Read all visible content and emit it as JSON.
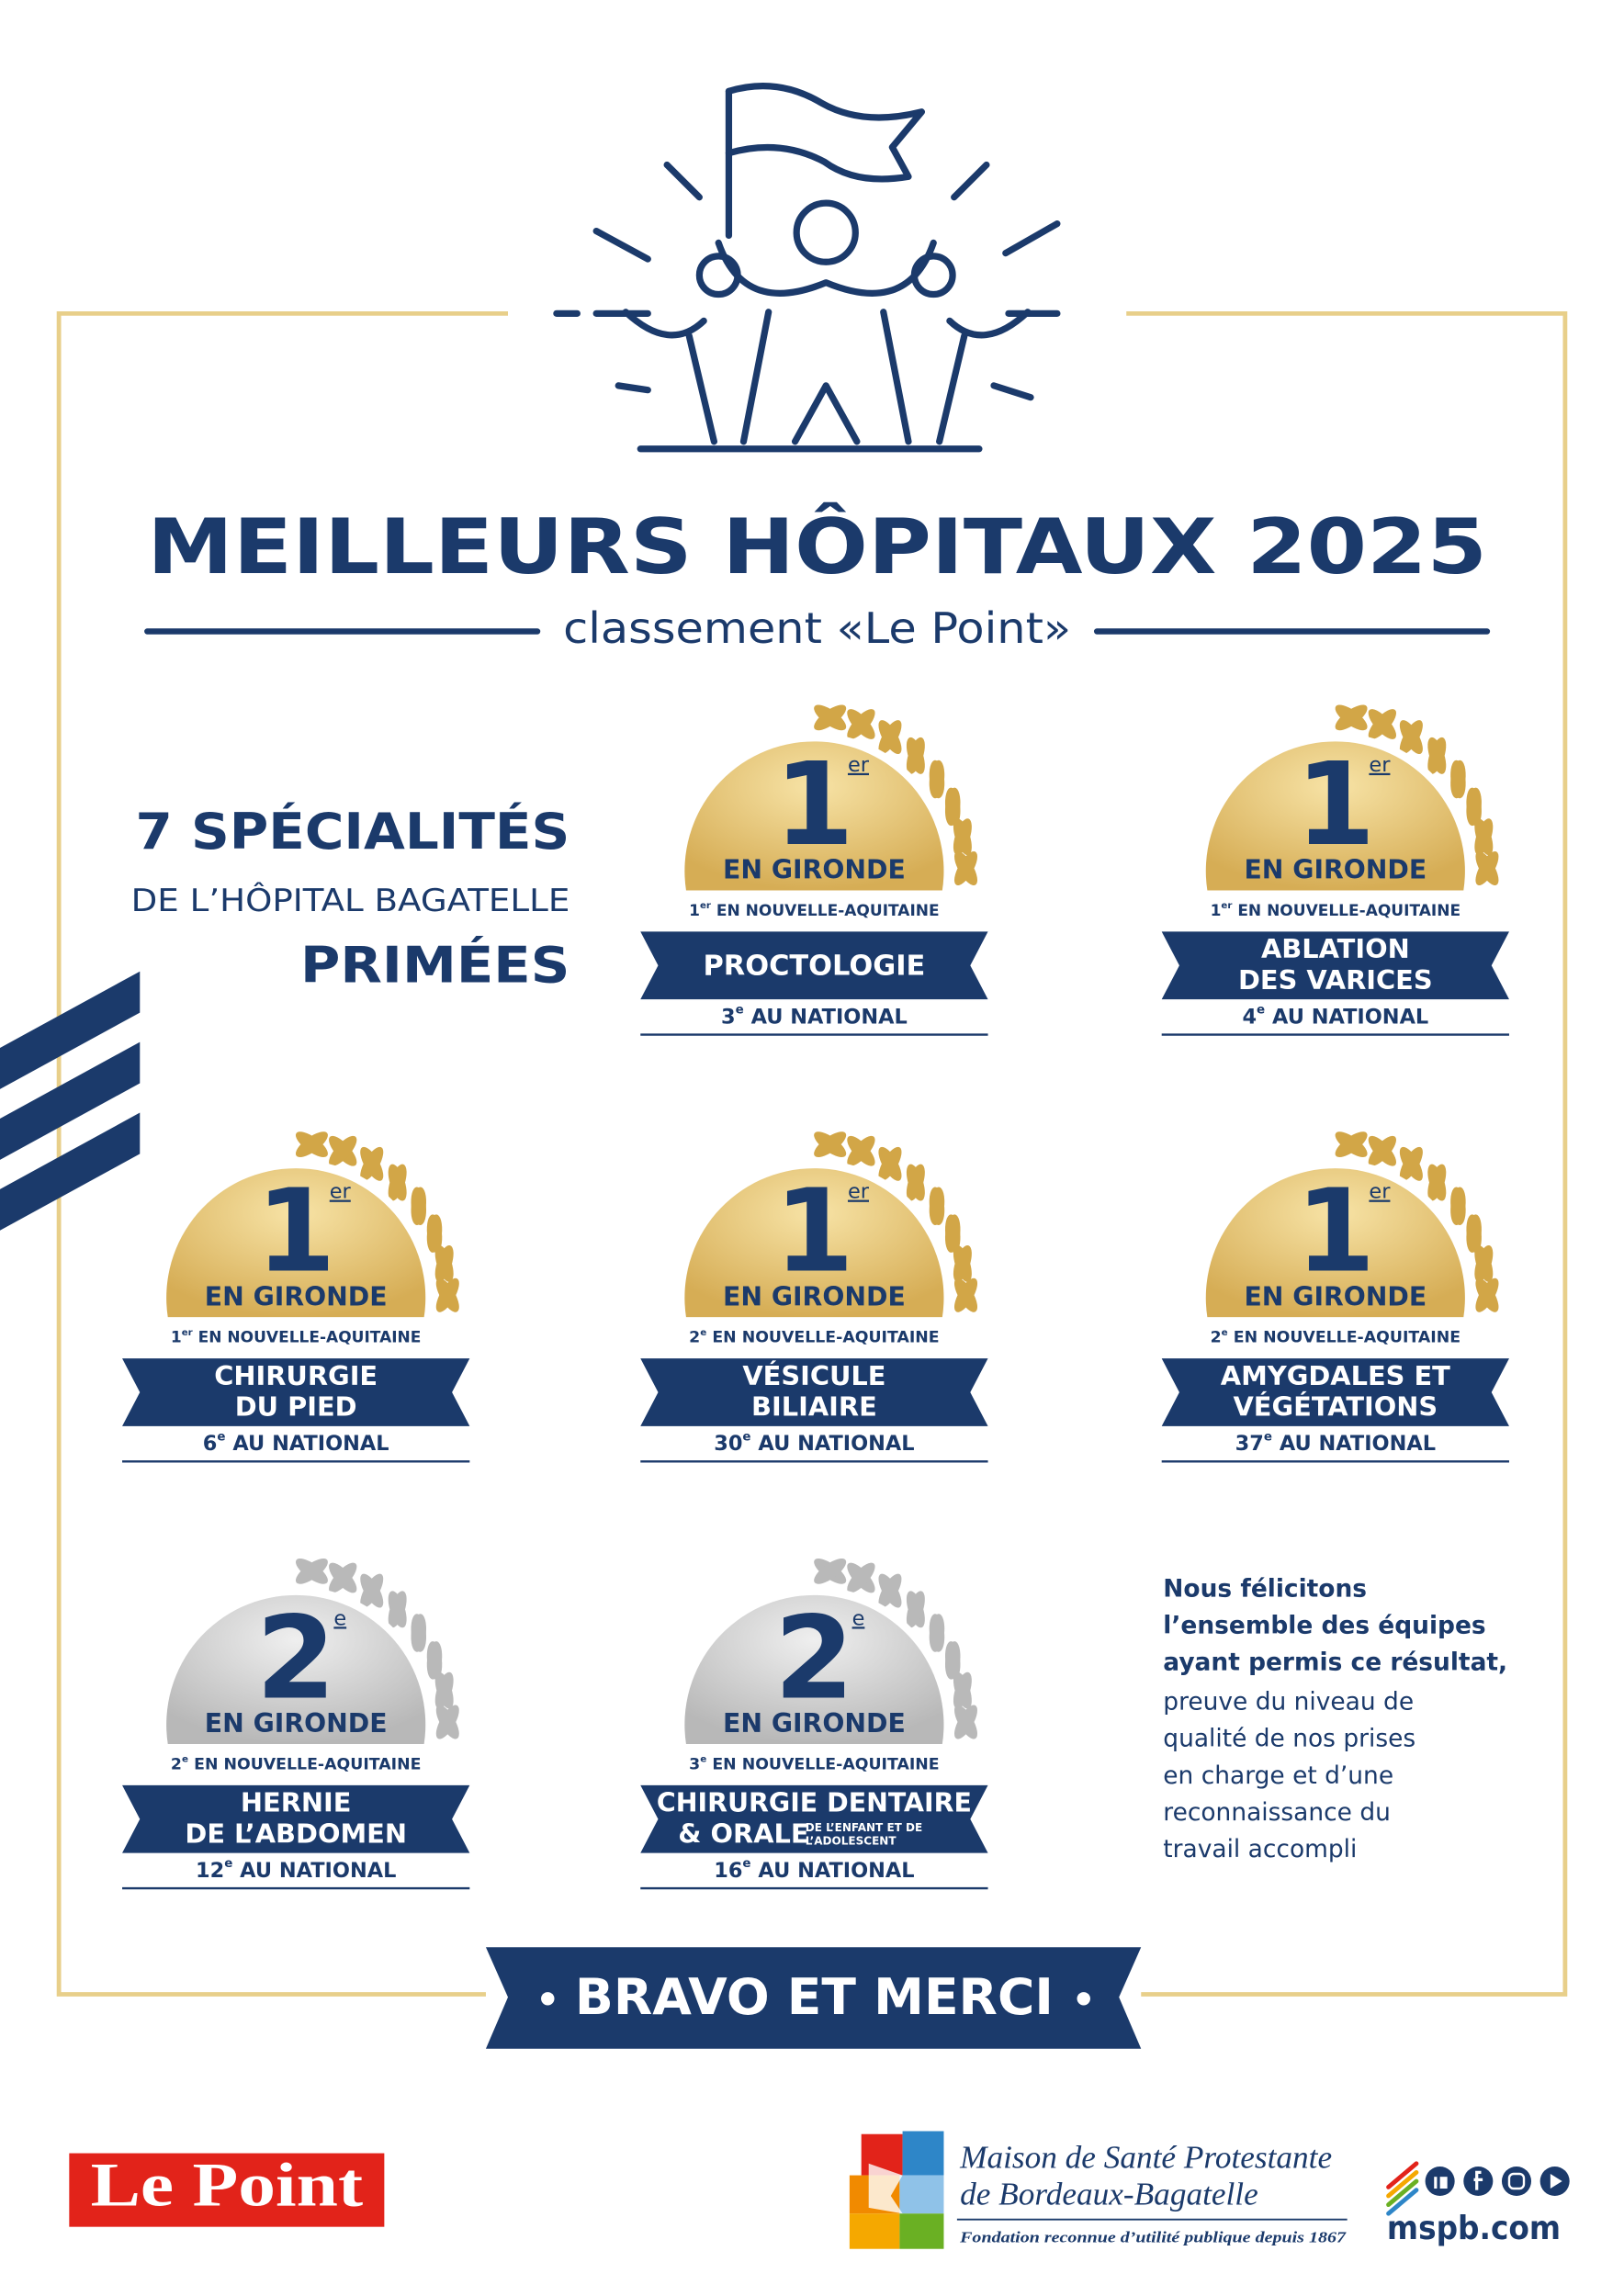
{
  "header": {
    "title": "MEILLEURS HÔPITAUX 2025",
    "subtitle": "classement «Le Point»"
  },
  "intro": {
    "count": "7 SPÉCIALITÉS",
    "hospital": "DE L’HÔPITAL BAGATELLE",
    "award": "PRIMÉES"
  },
  "badges": [
    {
      "medal": "gold",
      "rank": "1",
      "rank_suffix": "er",
      "area": "EN GIRONDE",
      "regional": {
        "rank": "1",
        "suffix": "er",
        "text": "EN NOUVELLE-AQUITAINE"
      },
      "specialty": [
        "PROCTOLOGIE"
      ],
      "national": {
        "rank": "3",
        "suffix": "e",
        "text": "AU NATIONAL"
      }
    },
    {
      "medal": "gold",
      "rank": "1",
      "rank_suffix": "er",
      "area": "EN GIRONDE",
      "regional": {
        "rank": "1",
        "suffix": "er",
        "text": "EN NOUVELLE-AQUITAINE"
      },
      "specialty": [
        "ABLATION",
        "DES VARICES"
      ],
      "national": {
        "rank": "4",
        "suffix": "e",
        "text": "AU NATIONAL"
      }
    },
    {
      "medal": "gold",
      "rank": "1",
      "rank_suffix": "er",
      "area": "EN GIRONDE",
      "regional": {
        "rank": "1",
        "suffix": "er",
        "text": "EN NOUVELLE-AQUITAINE"
      },
      "specialty": [
        "CHIRURGIE",
        "DU PIED"
      ],
      "national": {
        "rank": "6",
        "suffix": "e",
        "text": "AU NATIONAL"
      }
    },
    {
      "medal": "gold",
      "rank": "1",
      "rank_suffix": "er",
      "area": "EN GIRONDE",
      "regional": {
        "rank": "2",
        "suffix": "e",
        "text": "EN NOUVELLE-AQUITAINE"
      },
      "specialty": [
        "VÉSICULE",
        "BILIAIRE"
      ],
      "national": {
        "rank": "30",
        "suffix": "e",
        "text": "AU NATIONAL"
      }
    },
    {
      "medal": "gold",
      "rank": "1",
      "rank_suffix": "er",
      "area": "EN GIRONDE",
      "regional": {
        "rank": "2",
        "suffix": "e",
        "text": "EN NOUVELLE-AQUITAINE"
      },
      "specialty": [
        "AMYGDALES ET",
        "VÉGÉTATIONS"
      ],
      "national": {
        "rank": "37",
        "suffix": "e",
        "text": "AU NATIONAL"
      }
    },
    {
      "medal": "silver",
      "rank": "2",
      "rank_suffix": "e",
      "area": "EN GIRONDE",
      "regional": {
        "rank": "2",
        "suffix": "e",
        "text": "EN NOUVELLE-AQUITAINE"
      },
      "specialty": [
        "HERNIE",
        "DE L’ABDOMEN"
      ],
      "national": {
        "rank": "12",
        "suffix": "e",
        "text": "AU NATIONAL"
      }
    },
    {
      "medal": "silver",
      "rank": "2",
      "rank_suffix": "e",
      "area": "EN GIRONDE",
      "regional": {
        "rank": "3",
        "suffix": "e",
        "text": "EN NOUVELLE-AQUITAINE"
      },
      "specialty": [
        "CHIRURGIE DENTAIRE",
        "& ORALE"
      ],
      "specialty_note": [
        "DE L’ENFANT ET DE",
        "L’ADOLESCENT"
      ],
      "national": {
        "rank": "16",
        "suffix": "e",
        "text": "AU NATIONAL"
      }
    }
  ],
  "message": {
    "bold": [
      "Nous félicitons",
      "l’ensemble des équipes",
      "ayant permis ce résultat,"
    ],
    "regular": [
      "preuve du niveau de",
      "qualité de nos prises",
      "en charge et d’une",
      "reconnaissance du",
      "travail accompli"
    ]
  },
  "banner": "BRAVO ET MERCI",
  "footer": {
    "partner": "Le Point",
    "org": {
      "name": [
        "Maison de Santé Protestante",
        "de Bordeaux-Bagatelle"
      ],
      "tagline": "Fondation reconnue d’utilité publique depuis 1867"
    },
    "website": "mspb.com"
  }
}
